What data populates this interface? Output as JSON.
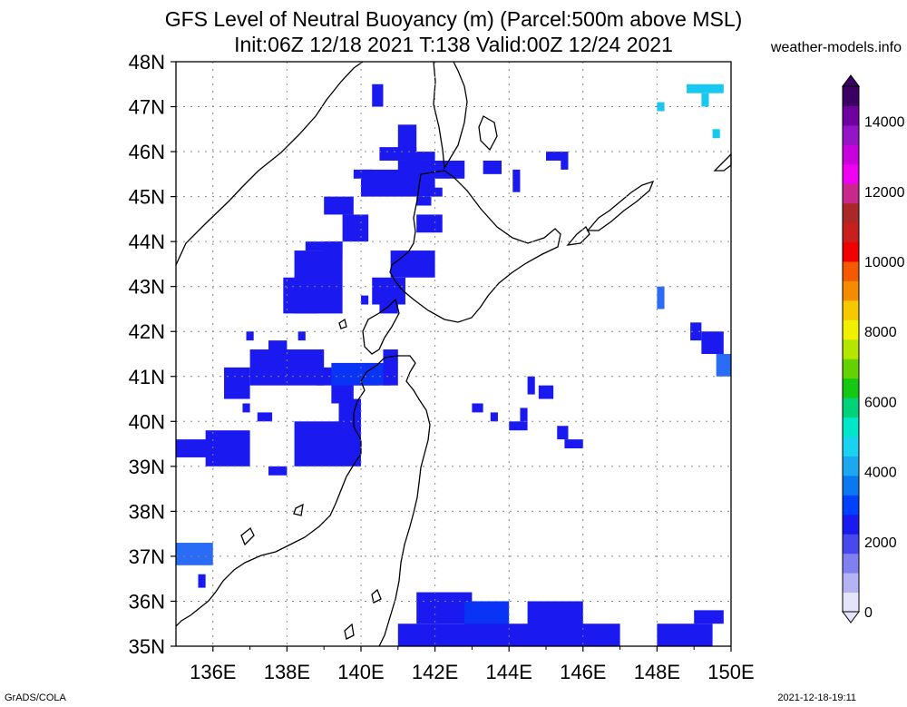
{
  "header": {
    "title_line1": "GFS Level of Neutral Buoyancy (m) (Parcel:500m above MSL)",
    "title_line2": "Init:06Z 12/18 2021 T:138 Valid:00Z 12/24 2021",
    "site": "weather-models.info"
  },
  "map": {
    "lat_labels": [
      "48N",
      "47N",
      "46N",
      "45N",
      "44N",
      "43N",
      "42N",
      "41N",
      "40N",
      "39N",
      "38N",
      "37N",
      "36N",
      "35N"
    ],
    "lon_labels": [
      "136E",
      "138E",
      "140E",
      "142E",
      "144E",
      "146E",
      "148E",
      "150E"
    ],
    "lat_range": [
      35,
      48
    ],
    "lon_range": [
      135,
      150
    ],
    "grid": true
  },
  "colorbar": {
    "tick_labels": [
      "14000",
      "12000",
      "10000",
      "8000",
      "6000",
      "4000",
      "2000",
      "0"
    ],
    "range": [
      0,
      15000
    ],
    "colors": [
      "#e4e4fa",
      "#b4b4f5",
      "#8080f0",
      "#4848ec",
      "#1a1af0",
      "#0040ff",
      "#0a78f0",
      "#1ca8f0",
      "#18d2f0",
      "#00e6c8",
      "#00d27a",
      "#14c814",
      "#64d200",
      "#b4e600",
      "#f0f000",
      "#f5c800",
      "#f58c00",
      "#f55a00",
      "#f00000",
      "#c81e1e",
      "#aa2828",
      "#c8288c",
      "#f000f0",
      "#c800dc",
      "#9614c8",
      "#6e00a0",
      "#3c0064"
    ]
  },
  "footer": {
    "left": "GrADS/COLA",
    "right": "2021-12-18-19:11"
  }
}
